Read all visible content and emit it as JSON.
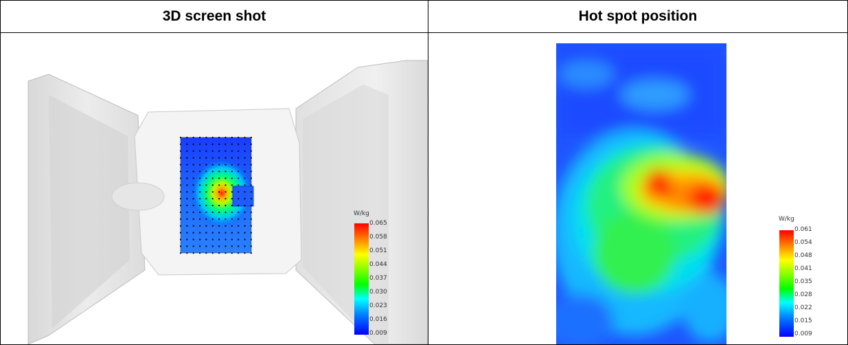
{
  "table": {
    "headers": [
      "3D screen shot",
      "Hot spot position"
    ]
  },
  "left_figure": {
    "legend": {
      "unit": "W/kg",
      "ticks": [
        "0.065",
        "0.058",
        "0.051",
        "0.044",
        "0.037",
        "0.030",
        "0.023",
        "0.016",
        "0.009"
      ]
    }
  },
  "right_figure": {
    "legend": {
      "unit": "W/kg",
      "ticks": [
        "0.061",
        "0.054",
        "0.048",
        "0.041",
        "0.035",
        "0.028",
        "0.022",
        "0.015",
        "0.009"
      ]
    }
  },
  "colors": {
    "scale": [
      "#ff0000",
      "#ff8000",
      "#ffff00",
      "#80ff00",
      "#00ff00",
      "#00ffff",
      "#0080ff",
      "#0000ff"
    ]
  }
}
